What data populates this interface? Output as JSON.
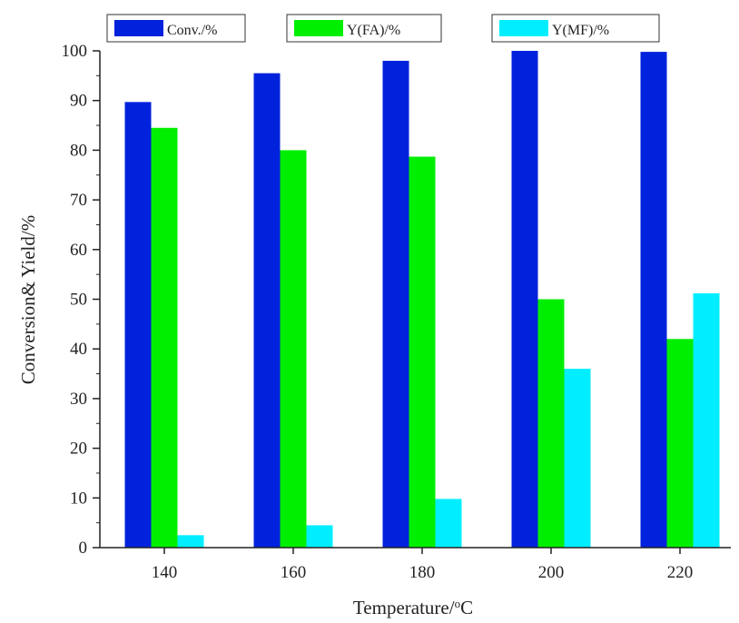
{
  "chart_data": {
    "type": "bar",
    "categories": [
      "140",
      "160",
      "180",
      "200",
      "220"
    ],
    "series": [
      {
        "name": "Conv./%",
        "color": "#0022dd",
        "values": [
          89.7,
          95.5,
          98.0,
          100,
          99.8
        ]
      },
      {
        "name": "Y(FA)/%",
        "color": "#00ee00",
        "values": [
          84.5,
          80.0,
          78.7,
          50.0,
          42.0
        ]
      },
      {
        "name": "Y(MF)/%",
        "color": "#00eeff",
        "values": [
          2.5,
          4.5,
          9.8,
          36.0,
          51.2
        ]
      }
    ],
    "xlabel": "Temperature/",
    "xlabel_unit": "C",
    "xlabel_superscript": "o",
    "ylabel": "Conversion& Yield/%",
    "ylim": [
      0,
      100
    ],
    "yticks": [
      0,
      10,
      20,
      30,
      40,
      50,
      60,
      70,
      80,
      90,
      100
    ],
    "legend_position": "top",
    "grid": false
  }
}
